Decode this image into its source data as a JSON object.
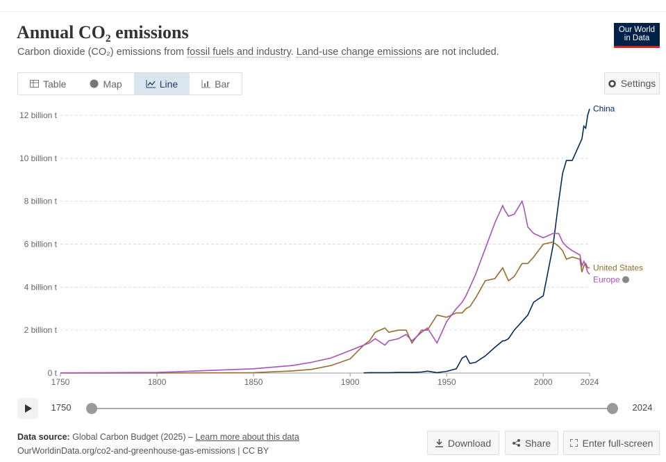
{
  "header": {
    "title": "Annual CO₂ emissions",
    "subtitle": [
      "Carbon dioxide (CO₂) emissions from ",
      "fossil fuels and industry",
      ". ",
      "Land-use change emissions",
      " are not included."
    ],
    "logo": [
      "Our World",
      "in Data"
    ]
  },
  "tabs": [
    "Table",
    "Map",
    "Line",
    "Bar"
  ],
  "settings": "Settings",
  "chart_data": {
    "type": "line",
    "x": [
      1750,
      1800,
      1850,
      1870,
      1880,
      1890,
      1900,
      1907,
      1910,
      1913,
      1918,
      1920,
      1925,
      1929,
      1932,
      1937,
      1940,
      1945,
      1950,
      1955,
      1958,
      1960,
      1962,
      1965,
      1970,
      1975,
      1979,
      1980,
      1982,
      1985,
      1989,
      1990,
      1992,
      1995,
      2000,
      2005,
      2008,
      2010,
      2012,
      2015,
      2019,
      2020,
      2021,
      2022,
      2023,
      2024
    ],
    "xlim": [
      1750,
      2024
    ],
    "xticks": [
      1750,
      1800,
      1850,
      1900,
      1950,
      2000,
      2024
    ],
    "ylim": [
      0,
      12
    ],
    "yticks": [
      {
        "value": 0,
        "label": "0 t"
      },
      {
        "value": 2,
        "label": "2 billion t"
      },
      {
        "value": 4,
        "label": "4 billion t"
      },
      {
        "value": 6,
        "label": "6 billion t"
      },
      {
        "value": 8,
        "label": "8 billion t"
      },
      {
        "value": 10,
        "label": "10 billion t"
      },
      {
        "value": 12,
        "label": "12 billion t"
      }
    ],
    "grid": true,
    "series": [
      {
        "name": "China",
        "color": "#00295b",
        "values": [
          null,
          null,
          null,
          null,
          null,
          null,
          null,
          0.01,
          0.02,
          0.02,
          0.02,
          0.02,
          0.03,
          0.03,
          0.03,
          0.05,
          0.09,
          0.02,
          0.08,
          0.2,
          0.7,
          0.8,
          0.45,
          0.5,
          0.8,
          1.2,
          1.5,
          1.5,
          1.6,
          2.0,
          2.4,
          2.5,
          2.7,
          3.3,
          3.6,
          5.9,
          8.0,
          9.3,
          9.9,
          9.9,
          10.7,
          10.9,
          11.5,
          11.4,
          12.0,
          12.3
        ]
      },
      {
        "name": "United States",
        "color": "#9a6b2c",
        "values": [
          0,
          0.001,
          0.02,
          0.1,
          0.17,
          0.35,
          0.66,
          1.3,
          1.5,
          1.9,
          2.1,
          1.9,
          2.0,
          2.0,
          1.4,
          2.0,
          2.0,
          2.7,
          2.6,
          2.8,
          2.8,
          3.0,
          3.1,
          3.5,
          4.3,
          4.4,
          4.9,
          4.7,
          4.3,
          4.5,
          5.1,
          5.1,
          5.1,
          5.4,
          6.0,
          6.1,
          5.9,
          5.7,
          5.3,
          5.4,
          5.3,
          4.7,
          5.0,
          5.1,
          4.9,
          4.9
        ]
      },
      {
        "name": "Europe",
        "color": "#a652ba",
        "values": [
          0.01,
          0.03,
          0.2,
          0.35,
          0.5,
          0.7,
          1.05,
          1.3,
          1.4,
          1.6,
          1.3,
          1.5,
          1.6,
          1.8,
          1.5,
          1.9,
          2.1,
          1.4,
          2.4,
          3.0,
          3.3,
          3.6,
          4.0,
          4.6,
          5.8,
          7.0,
          7.8,
          7.6,
          7.3,
          7.4,
          8.0,
          7.7,
          6.8,
          6.5,
          6.3,
          6.5,
          6.5,
          6.1,
          5.9,
          5.7,
          5.5,
          5.0,
          5.2,
          5.0,
          4.7,
          4.6
        ]
      }
    ]
  },
  "timeline": {
    "start": 1750,
    "end": 2024
  },
  "footer": {
    "source_label": "Data source:",
    "source": " Global Carbon Budget (2025) – ",
    "learn_more": "Learn more about this data",
    "url": "OurWorldinData.org/co2-and-greenhouse-gas-emissions | CC BY"
  },
  "actions": [
    "Download",
    "Share",
    "Enter full-screen"
  ]
}
